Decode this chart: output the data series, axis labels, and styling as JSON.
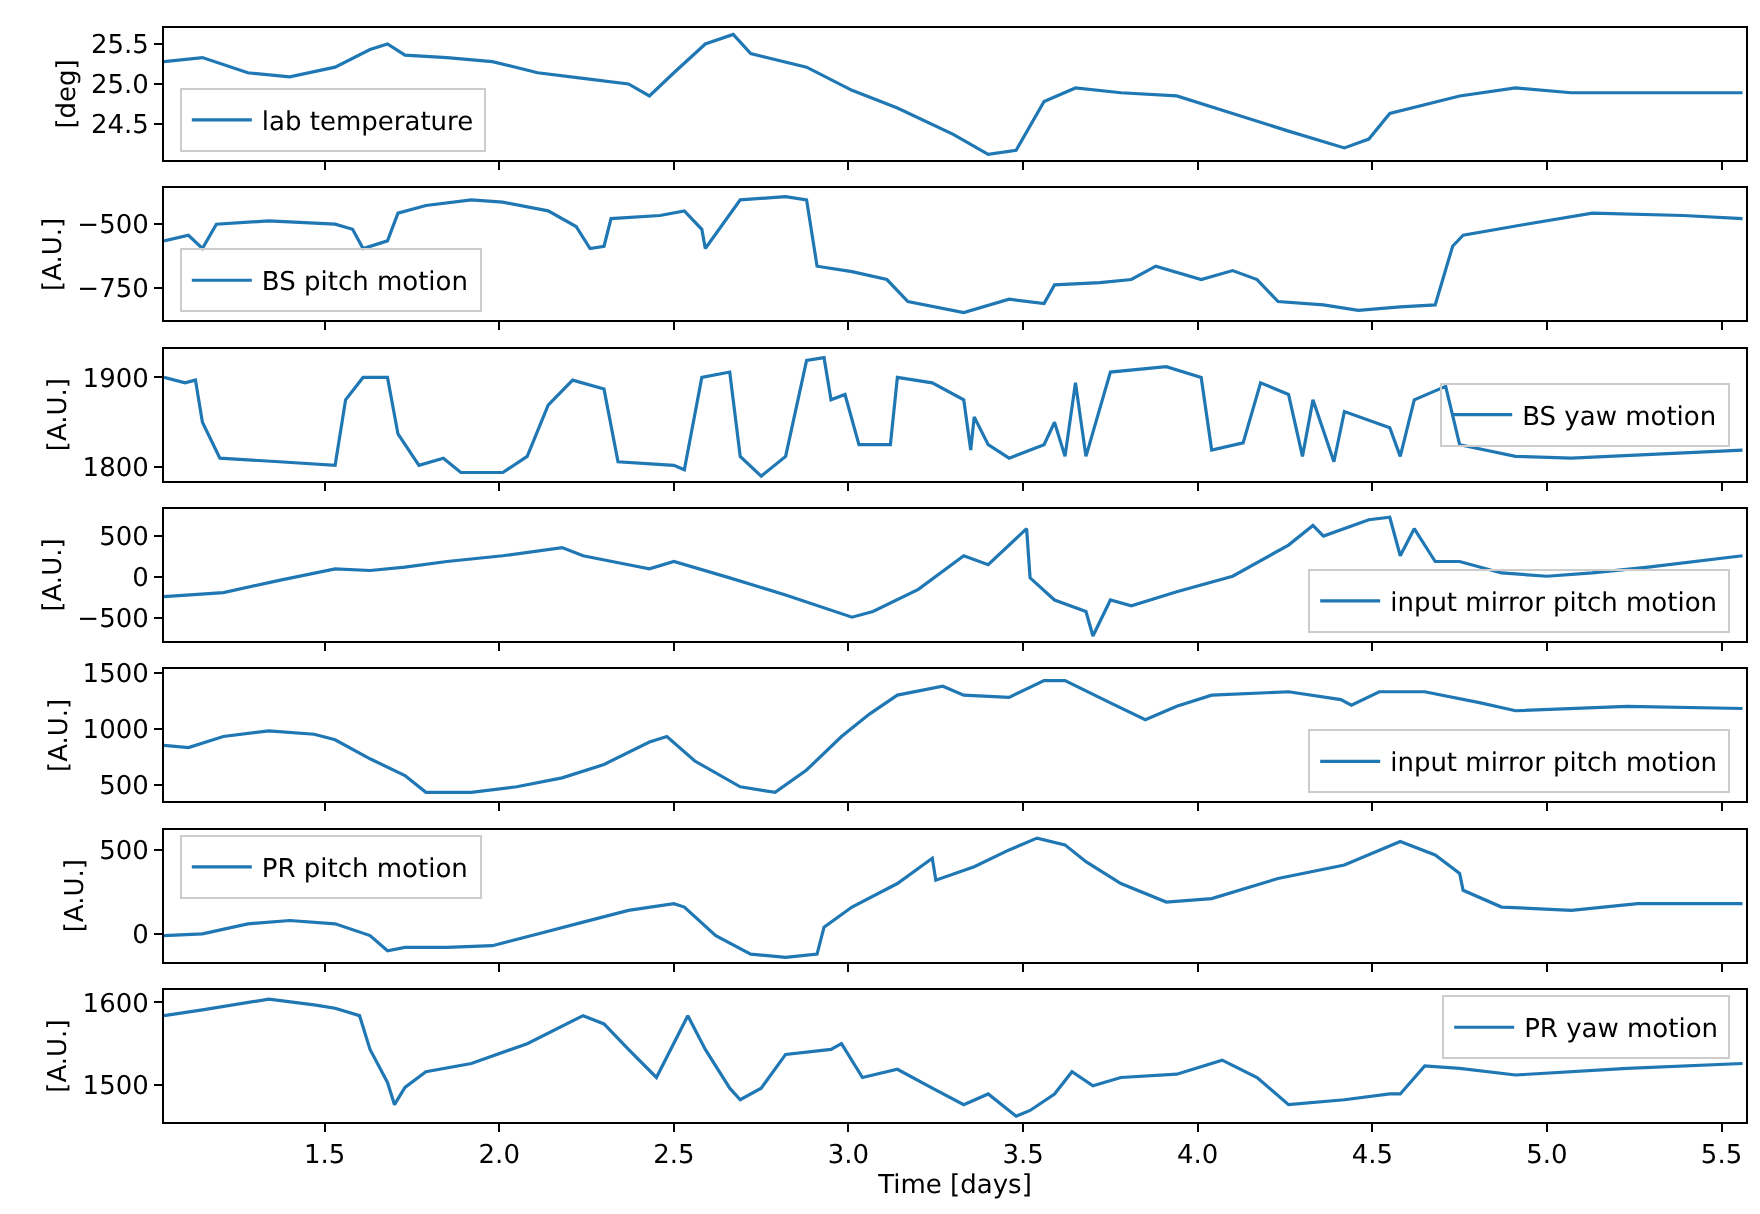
{
  "chart_data": [
    {
      "type": "line",
      "ylabel": "[deg]",
      "legend": "bottom left",
      "tick_labels": "y",
      "xlim": [
        1.04,
        5.57
      ],
      "xticks": [
        {
          "value": 1.5,
          "label": null
        },
        {
          "value": 2,
          "label": null
        },
        {
          "value": 2.5,
          "label": null
        },
        {
          "value": 3,
          "label": null
        },
        {
          "value": 3.5,
          "label": null
        },
        {
          "value": 4,
          "label": null
        },
        {
          "value": 4.5,
          "label": null
        },
        {
          "value": 5,
          "label": null
        },
        {
          "value": 5.5,
          "label": null
        }
      ],
      "ylim": [
        24.05,
        25.7
      ],
      "yticks": [
        24.5,
        {
          "value": 25,
          "label": "25.0"
        },
        25.5
      ],
      "x": [
        1.04,
        1.15,
        1.28,
        1.4,
        1.53,
        1.63,
        1.68,
        1.73,
        1.85,
        1.98,
        2.11,
        2.24,
        2.37,
        2.43,
        2.5,
        2.59,
        2.67,
        2.72,
        2.88,
        3.01,
        3.14,
        3.3,
        3.4,
        3.48,
        3.56,
        3.65,
        3.78,
        3.94,
        4.1,
        4.26,
        4.42,
        4.49,
        4.55,
        4.75,
        4.91,
        5.07,
        5.23,
        5.39,
        5.56
      ],
      "series": [
        {
          "name": "lab temperature",
          "color": "#1f77b4",
          "values": [
            25.28,
            25.33,
            25.14,
            25.09,
            25.21,
            25.43,
            25.5,
            25.36,
            25.33,
            25.28,
            25.14,
            25.07,
            25.0,
            24.85,
            25.14,
            25.5,
            25.62,
            25.38,
            25.21,
            24.92,
            24.7,
            24.37,
            24.12,
            24.17,
            24.78,
            24.95,
            24.89,
            24.85,
            24.63,
            24.41,
            24.2,
            24.31,
            24.63,
            24.85,
            24.95,
            24.89,
            24.89,
            24.89,
            24.89
          ]
        }
      ]
    },
    {
      "type": "line",
      "ylabel": "[A.U.]",
      "legend": "bottom left",
      "tick_labels": "y",
      "xlim": [
        1.04,
        5.57
      ],
      "xticks": [
        {
          "value": 1.5,
          "label": null
        },
        {
          "value": 2,
          "label": null
        },
        {
          "value": 2.5,
          "label": null
        },
        {
          "value": 3,
          "label": null
        },
        {
          "value": 3.5,
          "label": null
        },
        {
          "value": 4,
          "label": null
        },
        {
          "value": 4.5,
          "label": null
        },
        {
          "value": 5,
          "label": null
        },
        {
          "value": 5.5,
          "label": null
        }
      ],
      "ylim": [
        -875,
        -360
      ],
      "yticks": [
        {
          "value": -750,
          "label": "−750"
        },
        {
          "value": -500,
          "label": "−500"
        }
      ],
      "x": [
        1.04,
        1.11,
        1.15,
        1.19,
        1.34,
        1.53,
        1.58,
        1.61,
        1.68,
        1.71,
        1.79,
        1.92,
        2.01,
        2.14,
        2.22,
        2.26,
        2.3,
        2.32,
        2.46,
        2.53,
        2.58,
        2.59,
        2.69,
        2.82,
        2.88,
        2.91,
        3.01,
        3.11,
        3.17,
        3.33,
        3.46,
        3.56,
        3.59,
        3.72,
        3.81,
        3.88,
        4.01,
        4.1,
        4.17,
        4.23,
        4.36,
        4.46,
        4.58,
        4.68,
        4.73,
        4.76,
        4.94,
        5.13,
        5.39,
        5.56
      ],
      "series": [
        {
          "name": "BS pitch motion",
          "color": "#1f77b4",
          "values": [
            -565,
            -543,
            -595,
            -500,
            -487,
            -500,
            -520,
            -595,
            -565,
            -457,
            -427,
            -405,
            -414,
            -448,
            -509,
            -595,
            -586,
            -478,
            -466,
            -448,
            -520,
            -595,
            -405,
            -392,
            -405,
            -664,
            -685,
            -716,
            -802,
            -845,
            -793,
            -810,
            -737,
            -728,
            -716,
            -664,
            -716,
            -681,
            -716,
            -802,
            -815,
            -836,
            -823,
            -815,
            -586,
            -543,
            -500,
            -457,
            -466,
            -478
          ]
        }
      ]
    },
    {
      "type": "line",
      "ylabel": "[A.U.]",
      "legend": "right",
      "tick_labels": "y",
      "xlim": [
        1.04,
        5.57
      ],
      "xticks": [
        {
          "value": 1.5,
          "label": null
        },
        {
          "value": 2,
          "label": null
        },
        {
          "value": 2.5,
          "label": null
        },
        {
          "value": 3,
          "label": null
        },
        {
          "value": 3.5,
          "label": null
        },
        {
          "value": 4,
          "label": null
        },
        {
          "value": 4.5,
          "label": null
        },
        {
          "value": 5,
          "label": null
        },
        {
          "value": 5.5,
          "label": null
        }
      ],
      "ylim": [
        1785,
        1932
      ],
      "yticks": [
        1800,
        1900
      ],
      "x": [
        1.04,
        1.1,
        1.13,
        1.15,
        1.2,
        1.37,
        1.53,
        1.56,
        1.61,
        1.68,
        1.71,
        1.77,
        1.84,
        1.89,
        2.01,
        2.08,
        2.14,
        2.21,
        2.3,
        2.34,
        2.5,
        2.53,
        2.58,
        2.66,
        2.69,
        2.75,
        2.82,
        2.88,
        2.93,
        2.95,
        2.99,
        3.03,
        3.12,
        3.14,
        3.24,
        3.33,
        3.35,
        3.36,
        3.4,
        3.46,
        3.56,
        3.59,
        3.62,
        3.65,
        3.68,
        3.75,
        3.91,
        4.01,
        4.04,
        4.13,
        4.18,
        4.26,
        4.3,
        4.33,
        4.39,
        4.42,
        4.55,
        4.58,
        4.62,
        4.71,
        4.75,
        4.91,
        5.07,
        5.56
      ],
      "series": [
        {
          "name": "BS yaw motion",
          "color": "#1f77b4",
          "values": [
            1900,
            1894,
            1897,
            1850,
            1810,
            1806,
            1802,
            1875,
            1900,
            1900,
            1837,
            1802,
            1810,
            1794,
            1794,
            1812,
            1869,
            1897,
            1887,
            1806,
            1802,
            1797,
            1900,
            1906,
            1812,
            1790,
            1812,
            1919,
            1922,
            1875,
            1881,
            1825,
            1825,
            1900,
            1894,
            1875,
            1819,
            1856,
            1825,
            1810,
            1825,
            1850,
            1812,
            1894,
            1812,
            1906,
            1912,
            1900,
            1819,
            1827,
            1894,
            1881,
            1812,
            1875,
            1806,
            1862,
            1844,
            1812,
            1875,
            1890,
            1825,
            1812,
            1810,
            1819
          ]
        }
      ]
    },
    {
      "type": "line",
      "ylabel": "[A.U.]",
      "legend": "bottom right",
      "tick_labels": "y",
      "xlim": [
        1.04,
        5.57
      ],
      "xticks": [
        {
          "value": 1.5,
          "label": null
        },
        {
          "value": 2,
          "label": null
        },
        {
          "value": 2.5,
          "label": null
        },
        {
          "value": 3,
          "label": null
        },
        {
          "value": 3.5,
          "label": null
        },
        {
          "value": 4,
          "label": null
        },
        {
          "value": 4.5,
          "label": null
        },
        {
          "value": 5,
          "label": null
        },
        {
          "value": 5.5,
          "label": null
        }
      ],
      "ylim": [
        -780,
        830
      ],
      "yticks": [
        {
          "value": -500,
          "label": "−500"
        },
        0,
        500
      ],
      "x": [
        1.04,
        1.21,
        1.37,
        1.53,
        1.63,
        1.73,
        1.85,
        2.01,
        2.18,
        2.24,
        2.37,
        2.43,
        2.5,
        2.66,
        2.82,
        3.01,
        3.07,
        3.2,
        3.33,
        3.4,
        3.51,
        3.52,
        3.59,
        3.68,
        3.7,
        3.75,
        3.81,
        3.94,
        4.1,
        4.26,
        4.33,
        4.36,
        4.49,
        4.55,
        4.58,
        4.62,
        4.68,
        4.75,
        4.87,
        5.0,
        5.13,
        5.29,
        5.56
      ],
      "series": [
        {
          "name": "input mirror pitch motion",
          "color": "#1f77b4",
          "values": [
            -240,
            -190,
            -40,
            100,
            80,
            120,
            190,
            260,
            360,
            260,
            150,
            100,
            190,
            -10,
            -220,
            -490,
            -420,
            -150,
            260,
            150,
            590,
            -10,
            -280,
            -420,
            -720,
            -280,
            -350,
            -180,
            10,
            390,
            630,
            500,
            700,
            730,
            260,
            590,
            190,
            190,
            50,
            10,
            50,
            120,
            260
          ]
        }
      ]
    },
    {
      "type": "line",
      "ylabel": "[A.U.]",
      "legend": "bottom right",
      "tick_labels": "y",
      "xlim": [
        1.04,
        5.57
      ],
      "xticks": [
        {
          "value": 1.5,
          "label": null
        },
        {
          "value": 2,
          "label": null
        },
        {
          "value": 2.5,
          "label": null
        },
        {
          "value": 3,
          "label": null
        },
        {
          "value": 3.5,
          "label": null
        },
        {
          "value": 4,
          "label": null
        },
        {
          "value": 4.5,
          "label": null
        },
        {
          "value": 5,
          "label": null
        },
        {
          "value": 5.5,
          "label": null
        }
      ],
      "ylim": [
        350,
        1530
      ],
      "yticks": [
        500,
        1000,
        1500
      ],
      "x": [
        1.04,
        1.11,
        1.21,
        1.34,
        1.47,
        1.53,
        1.63,
        1.73,
        1.79,
        1.92,
        2.05,
        2.18,
        2.3,
        2.43,
        2.48,
        2.56,
        2.69,
        2.79,
        2.88,
        2.98,
        3.06,
        3.14,
        3.27,
        3.33,
        3.46,
        3.56,
        3.62,
        3.75,
        3.85,
        3.94,
        4.04,
        4.26,
        4.41,
        4.44,
        4.52,
        4.65,
        4.81,
        4.91,
        5.23,
        5.56
      ],
      "series": [
        {
          "name": "input mirror pitch motion",
          "color": "#1f77b4",
          "values": [
            850,
            830,
            930,
            980,
            950,
            900,
            730,
            580,
            430,
            430,
            480,
            560,
            680,
            880,
            930,
            710,
            480,
            430,
            630,
            930,
            1130,
            1300,
            1380,
            1300,
            1280,
            1430,
            1430,
            1230,
            1080,
            1200,
            1300,
            1330,
            1260,
            1210,
            1330,
            1330,
            1230,
            1160,
            1200,
            1180
          ]
        }
      ]
    },
    {
      "type": "line",
      "ylabel": "[A.U.]",
      "legend": "top left",
      "tick_labels": "y",
      "xlim": [
        1.04,
        5.57
      ],
      "xticks": [
        {
          "value": 1.5,
          "label": null
        },
        {
          "value": 2,
          "label": null
        },
        {
          "value": 2.5,
          "label": null
        },
        {
          "value": 3,
          "label": null
        },
        {
          "value": 3.5,
          "label": null
        },
        {
          "value": 4,
          "label": null
        },
        {
          "value": 4.5,
          "label": null
        },
        {
          "value": 5,
          "label": null
        },
        {
          "value": 5.5,
          "label": null
        }
      ],
      "ylim": [
        -165,
        620
      ],
      "yticks": [
        0,
        500
      ],
      "x": [
        1.04,
        1.15,
        1.28,
        1.4,
        1.53,
        1.63,
        1.68,
        1.73,
        1.85,
        1.98,
        2.11,
        2.24,
        2.37,
        2.5,
        2.53,
        2.62,
        2.72,
        2.82,
        2.91,
        2.93,
        3.01,
        3.14,
        3.24,
        3.25,
        3.36,
        3.46,
        3.54,
        3.62,
        3.68,
        3.78,
        3.91,
        4.04,
        4.23,
        4.42,
        4.58,
        4.68,
        4.75,
        4.76,
        4.87,
        5.07,
        5.26,
        5.56
      ],
      "series": [
        {
          "name": "PR pitch motion",
          "color": "#1f77b4",
          "values": [
            -10,
            0,
            60,
            80,
            60,
            -10,
            -100,
            -80,
            -80,
            -70,
            0,
            70,
            140,
            180,
            160,
            -10,
            -120,
            -140,
            -120,
            40,
            160,
            300,
            450,
            320,
            400,
            500,
            570,
            530,
            430,
            300,
            190,
            210,
            330,
            410,
            550,
            470,
            360,
            260,
            160,
            140,
            180,
            180
          ]
        }
      ]
    },
    {
      "type": "line",
      "ylabel": "[A.U.]",
      "xlabel": "Time [days]",
      "legend": "top right",
      "xlim": [
        1.04,
        5.57
      ],
      "xticks": [
        1.5,
        {
          "value": 2,
          "label": "2.0"
        },
        2.5,
        {
          "value": 3,
          "label": "3.0"
        },
        3.5,
        {
          "value": 4,
          "label": "4.0"
        },
        4.5,
        {
          "value": 5,
          "label": "5.0"
        },
        5.5
      ],
      "ylim": [
        1455,
        1615
      ],
      "yticks": [
        1500,
        1600
      ],
      "x": [
        1.04,
        1.15,
        1.34,
        1.47,
        1.53,
        1.6,
        1.63,
        1.68,
        1.7,
        1.73,
        1.79,
        1.92,
        2.08,
        2.24,
        2.3,
        2.37,
        2.45,
        2.54,
        2.59,
        2.66,
        2.69,
        2.75,
        2.82,
        2.95,
        2.98,
        3.04,
        3.14,
        3.24,
        3.33,
        3.4,
        3.48,
        3.52,
        3.59,
        3.64,
        3.7,
        3.78,
        3.94,
        4.07,
        4.17,
        4.26,
        4.42,
        4.55,
        4.58,
        4.65,
        4.75,
        4.91,
        5.23,
        5.56
      ],
      "series": [
        {
          "name": "PR yaw motion",
          "color": "#1f77b4",
          "values": [
            1584,
            1591,
            1604,
            1597,
            1593,
            1584,
            1543,
            1503,
            1476,
            1497,
            1516,
            1526,
            1550,
            1584,
            1574,
            1543,
            1509,
            1584,
            1543,
            1496,
            1482,
            1496,
            1537,
            1543,
            1550,
            1509,
            1519,
            1496,
            1476,
            1489,
            1462,
            1469,
            1489,
            1516,
            1499,
            1509,
            1513,
            1530,
            1509,
            1476,
            1482,
            1489,
            1489,
            1523,
            1520,
            1512,
            1520,
            1526
          ]
        }
      ]
    }
  ]
}
